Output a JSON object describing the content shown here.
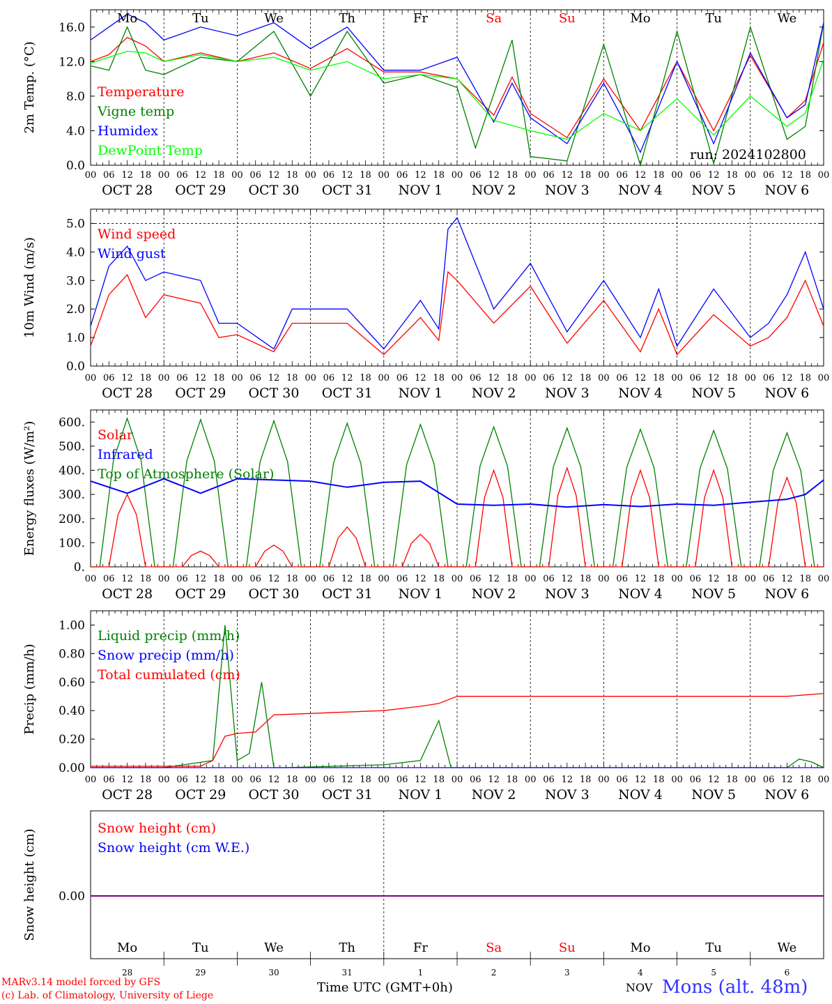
{
  "station": "Mons (alt. 48m)",
  "run_label": "run: 2024102800",
  "credits": [
    "MARv3.14 model forced by GFS",
    "(c) Lab. of Climatology, University of Liege"
  ],
  "time_axis_label": "Time UTC (GMT+0h)",
  "bottom_month": "NOV",
  "hour_ticks": [
    "00",
    "06",
    "12",
    "18"
  ],
  "days": [
    {
      "weekday": "Mo",
      "date": "OCT 28",
      "num": "28",
      "weekend": false
    },
    {
      "weekday": "Tu",
      "date": "OCT 29",
      "num": "29",
      "weekend": false
    },
    {
      "weekday": "We",
      "date": "OCT 30",
      "num": "30",
      "weekend": false
    },
    {
      "weekday": "Th",
      "date": "OCT 31",
      "num": "31",
      "weekend": false
    },
    {
      "weekday": "Fr",
      "date": "NOV 1",
      "num": "1",
      "weekend": false
    },
    {
      "weekday": "Sa",
      "date": "NOV 2",
      "num": "2",
      "weekend": true
    },
    {
      "weekday": "Su",
      "date": "NOV 3",
      "num": "3",
      "weekend": true
    },
    {
      "weekday": "Mo",
      "date": "NOV 4",
      "num": "4",
      "weekend": false
    },
    {
      "weekday": "Tu",
      "date": "NOV 5",
      "num": "5",
      "weekend": false
    },
    {
      "weekday": "We",
      "date": "NOV 6",
      "num": "6",
      "weekend": false
    }
  ],
  "colors": {
    "red": "#ff0000",
    "green": "#008000",
    "blue": "#0000ff",
    "lightgreen": "#00ff00",
    "purple": "#800080",
    "station": "#3333ff"
  },
  "chart_data": [
    {
      "type": "line",
      "ylabel": "2m Temp. (°C)",
      "ylim": [
        0,
        18
      ],
      "yticks": [
        "0.0",
        "4.0",
        "8.0",
        "12.0",
        "16.0"
      ],
      "x_unit": "hours since OCT 28 00 UTC",
      "series": [
        {
          "name": "Temperature",
          "color": "#ff0000",
          "x": [
            0,
            6,
            12,
            18,
            24,
            36,
            48,
            60,
            72,
            84,
            96,
            108,
            120,
            132,
            138,
            144,
            156,
            168,
            180,
            192,
            204,
            216,
            228,
            234,
            240
          ],
          "y": [
            12,
            12.8,
            14.8,
            13.8,
            12,
            13,
            12,
            13,
            11.2,
            13.5,
            10.8,
            10.8,
            10,
            5.8,
            10.2,
            6,
            3.2,
            10,
            4,
            12,
            4,
            12.7,
            5.5,
            7.5,
            14.2
          ]
        },
        {
          "name": "Vigne temp",
          "color": "#008000",
          "x": [
            0,
            6,
            12,
            18,
            24,
            36,
            48,
            60,
            72,
            84,
            96,
            108,
            120,
            126,
            138,
            144,
            156,
            168,
            180,
            192,
            204,
            216,
            228,
            234,
            240
          ],
          "y": [
            11.5,
            11,
            16,
            11,
            10.5,
            12.5,
            12,
            15.5,
            8,
            15.5,
            9.5,
            10.5,
            9,
            2,
            14.5,
            1,
            0.5,
            14,
            0,
            15.5,
            0.2,
            16,
            3,
            4.5,
            16.5
          ]
        },
        {
          "name": "Humidex",
          "color": "#0000ff",
          "x": [
            0,
            6,
            12,
            18,
            24,
            36,
            48,
            60,
            72,
            84,
            96,
            108,
            120,
            132,
            138,
            144,
            156,
            168,
            180,
            192,
            204,
            216,
            228,
            234,
            240
          ],
          "y": [
            14.5,
            16,
            17.5,
            16.5,
            14.5,
            16,
            15,
            16.5,
            13.5,
            16,
            11,
            11,
            12.5,
            5,
            9.5,
            5.5,
            2.5,
            9.5,
            1.5,
            12,
            2.5,
            13,
            5.5,
            7,
            16.5
          ]
        },
        {
          "name": "DewPoint Temp",
          "color": "#00ff00",
          "x": [
            0,
            6,
            12,
            18,
            24,
            36,
            48,
            60,
            72,
            84,
            96,
            108,
            120,
            132,
            144,
            156,
            168,
            180,
            192,
            204,
            216,
            228,
            234,
            240
          ],
          "y": [
            11.8,
            12.5,
            13.2,
            13,
            12,
            12.8,
            12,
            12.5,
            11,
            12,
            10,
            10.5,
            10,
            5.2,
            4,
            3,
            6,
            4,
            7.7,
            3.5,
            8,
            4.5,
            6,
            12.3
          ]
        }
      ],
      "annotation": "run: 2024102800"
    },
    {
      "type": "line",
      "ylabel": "10m Wind (m/s)",
      "ylim": [
        0,
        5.5
      ],
      "yticks": [
        "0.0",
        "1.0",
        "2.0",
        "3.0",
        "4.0",
        "5.0"
      ],
      "series": [
        {
          "name": "Wind speed",
          "color": "#ff0000",
          "x": [
            0,
            6,
            12,
            18,
            24,
            36,
            42,
            48,
            60,
            66,
            72,
            84,
            96,
            108,
            114,
            117,
            120,
            132,
            144,
            156,
            168,
            180,
            186,
            192,
            204,
            216,
            222,
            228,
            234,
            240
          ],
          "y": [
            0.7,
            2.5,
            3.2,
            1.7,
            2.5,
            2.2,
            1.0,
            1.1,
            0.5,
            1.5,
            1.5,
            1.5,
            0.4,
            1.7,
            0.9,
            3.3,
            3.0,
            1.5,
            2.8,
            0.8,
            2.3,
            0.5,
            2.0,
            0.4,
            1.8,
            0.7,
            1.0,
            1.7,
            3.0,
            1.4
          ]
        },
        {
          "name": "Wind gust",
          "color": "#0000ff",
          "x": [
            0,
            6,
            12,
            18,
            24,
            36,
            42,
            48,
            60,
            66,
            72,
            84,
            96,
            108,
            114,
            117,
            120,
            132,
            144,
            156,
            168,
            180,
            186,
            192,
            204,
            216,
            222,
            228,
            234,
            240
          ],
          "y": [
            1.4,
            3.5,
            4.2,
            3.0,
            3.3,
            3.0,
            1.5,
            1.5,
            0.6,
            2.0,
            2.0,
            2.0,
            0.6,
            2.3,
            1.3,
            4.8,
            5.2,
            2.0,
            3.6,
            1.2,
            3.0,
            1.0,
            2.7,
            0.7,
            2.7,
            1.0,
            1.5,
            2.5,
            4.0,
            2.0
          ]
        }
      ],
      "reference_line": 5.0
    },
    {
      "type": "line",
      "ylabel": "Energy fluxes (W/m²)",
      "ylim": [
        0,
        650
      ],
      "yticks": [
        "0.",
        "100.",
        "200.",
        "300.",
        "400.",
        "500.",
        "600."
      ],
      "series": [
        {
          "name": "Solar",
          "color": "#ff0000",
          "peaks": [
            300,
            65,
            90,
            165,
            135,
            400,
            410,
            400,
            400,
            370
          ]
        },
        {
          "name": "Infrared",
          "color": "#0000ff",
          "x": [
            0,
            12,
            24,
            36,
            48,
            60,
            72,
            84,
            96,
            108,
            120,
            132,
            144,
            156,
            168,
            180,
            192,
            204,
            216,
            228,
            234,
            240
          ],
          "y": [
            355,
            305,
            365,
            305,
            365,
            360,
            355,
            330,
            350,
            355,
            260,
            255,
            260,
            248,
            258,
            250,
            260,
            255,
            268,
            280,
            300,
            360
          ]
        },
        {
          "name": "Top of Atmosphere (Solar)",
          "color": "#008000",
          "peaks": [
            615,
            610,
            605,
            595,
            590,
            580,
            575,
            570,
            565,
            555
          ]
        }
      ]
    },
    {
      "type": "line",
      "ylabel": "Precip (mm/h)",
      "ylim": [
        0,
        1.1
      ],
      "yticks": [
        "0.00",
        "0.20",
        "0.40",
        "0.60",
        "0.80",
        "1.00"
      ],
      "series": [
        {
          "name": "Liquid precip (mm/h)",
          "color": "#008000",
          "x": [
            0,
            24,
            40,
            44,
            48,
            52,
            56,
            60,
            64,
            96,
            108,
            114,
            118,
            120,
            228,
            232,
            236,
            240
          ],
          "y": [
            0,
            0,
            0.05,
            1.0,
            0.05,
            0.1,
            0.6,
            0,
            0,
            0.02,
            0.05,
            0.33,
            0,
            0,
            0,
            0.06,
            0.04,
            0
          ]
        },
        {
          "name": "Snow precip (mm/h)",
          "color": "#0000ff",
          "x": [
            0,
            240
          ],
          "y": [
            0,
            0
          ]
        },
        {
          "name": "Total cumulated (cm)",
          "color": "#ff0000",
          "x": [
            0,
            36,
            40,
            44,
            48,
            54,
            60,
            72,
            84,
            96,
            108,
            114,
            120,
            228,
            234,
            240
          ],
          "y": [
            0.01,
            0.01,
            0.05,
            0.22,
            0.24,
            0.25,
            0.37,
            0.38,
            0.39,
            0.4,
            0.43,
            0.45,
            0.5,
            0.5,
            0.51,
            0.52
          ]
        }
      ]
    },
    {
      "type": "line",
      "ylabel": "Snow height (cm)",
      "yticks": [
        "0.00"
      ],
      "series": [
        {
          "name": "Snow height (cm)",
          "color": "#ff0000",
          "x": [
            0,
            240
          ],
          "y": [
            0,
            0
          ]
        },
        {
          "name": "Snow height (cm W.E.)",
          "color": "#0000ff",
          "x": [
            0,
            240
          ],
          "y": [
            0,
            0
          ]
        }
      ]
    }
  ]
}
